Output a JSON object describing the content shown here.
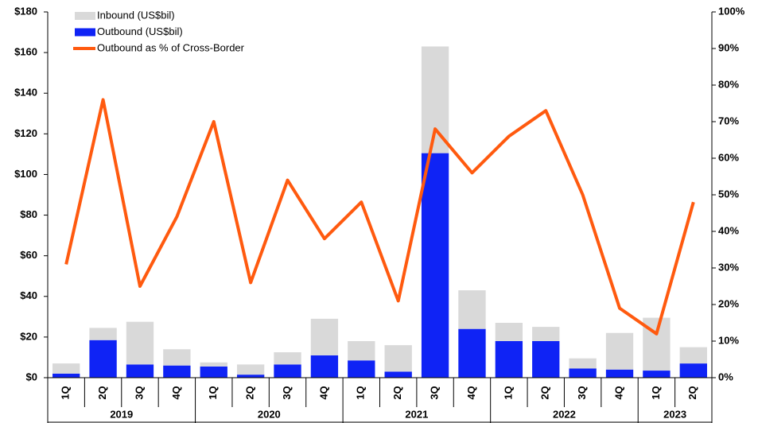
{
  "chart_data": {
    "type": "bar",
    "categories": [
      "1Q",
      "2Q",
      "3Q",
      "4Q",
      "1Q",
      "2Q",
      "3Q",
      "4Q",
      "1Q",
      "2Q",
      "3Q",
      "4Q",
      "1Q",
      "2Q",
      "3Q",
      "4Q",
      "1Q",
      "2Q"
    ],
    "years": [
      "2019",
      "2019",
      "2019",
      "2019",
      "2020",
      "2020",
      "2020",
      "2020",
      "2021",
      "2021",
      "2021",
      "2021",
      "2022",
      "2022",
      "2022",
      "2022",
      "2023",
      "2023"
    ],
    "series": [
      {
        "name": "Inbound (US$bil)",
        "type": "bar",
        "color": "#d9d9d9",
        "values": [
          5,
          6,
          21,
          8,
          2,
          5,
          6,
          18,
          9.5,
          13,
          52.5,
          19,
          9,
          7,
          5,
          18,
          26,
          8
        ]
      },
      {
        "name": "Outbound (US$bil)",
        "type": "bar",
        "color": "#0f23f5",
        "values": [
          2,
          18.5,
          6.5,
          6,
          5.5,
          1.5,
          6.5,
          11,
          8.5,
          3,
          110.5,
          24,
          18,
          18,
          4.5,
          4,
          3.5,
          7
        ]
      },
      {
        "name": "Outbound as % of Cross-Border",
        "type": "line",
        "axis": "y2",
        "color": "#ff5a0f",
        "values": [
          31,
          76,
          25,
          44,
          70,
          26,
          54,
          38,
          48,
          21,
          68,
          56,
          66,
          73,
          50,
          19,
          12,
          48
        ]
      }
    ],
    "stacked": true,
    "ylim": [
      0,
      180
    ],
    "yticks": [
      {
        "value": 0,
        "label": "$0"
      },
      {
        "value": 20,
        "label": "$20"
      },
      {
        "value": 40,
        "label": "$40"
      },
      {
        "value": 60,
        "label": "$60"
      },
      {
        "value": 80,
        "label": "$80"
      },
      {
        "value": 100,
        "label": "$100"
      },
      {
        "value": 120,
        "label": "$120"
      },
      {
        "value": 140,
        "label": "$140"
      },
      {
        "value": 160,
        "label": "$160"
      },
      {
        "value": 180,
        "label": "$180"
      }
    ],
    "y2lim": [
      0,
      100
    ],
    "y2ticks": [
      {
        "value": 0,
        "label": "0%"
      },
      {
        "value": 10,
        "label": "10%"
      },
      {
        "value": 20,
        "label": "20%"
      },
      {
        "value": 30,
        "label": "30%"
      },
      {
        "value": 40,
        "label": "40%"
      },
      {
        "value": 50,
        "label": "50%"
      },
      {
        "value": 60,
        "label": "60%"
      },
      {
        "value": 70,
        "label": "70%"
      },
      {
        "value": 80,
        "label": "80%"
      },
      {
        "value": 90,
        "label": "90%"
      },
      {
        "value": 100,
        "label": "100%"
      }
    ],
    "legend": "top-left",
    "grid": false
  }
}
